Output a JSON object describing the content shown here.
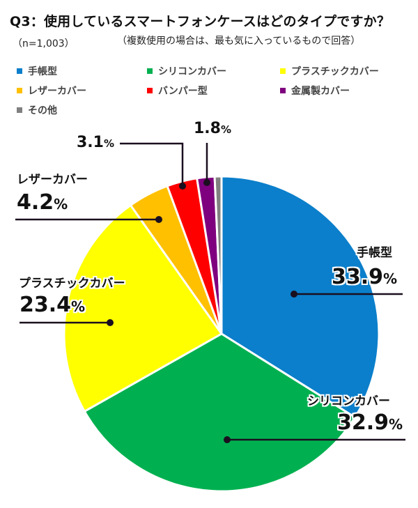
{
  "header": {
    "title": "Q3：使用しているスマートフォンケースはどのタイプですか？",
    "sample_size": "（n=1,003）",
    "note": "（複数使用の場合は、最も気に入っているもので回答）"
  },
  "legend": [
    {
      "label": "手帳型",
      "color": "#0b7fcb"
    },
    {
      "label": "シリコンカバー",
      "color": "#00b050"
    },
    {
      "label": "プラスチックカバー",
      "color": "#ffff00"
    },
    {
      "label": "レザーカバー",
      "color": "#ffc000"
    },
    {
      "label": "バンパー型",
      "color": "#ff0000"
    },
    {
      "label": "金属製カバー",
      "color": "#7f007f"
    },
    {
      "label": "その他",
      "color": "#808080"
    }
  ],
  "labels": {
    "techo": {
      "name": "手帳型",
      "value": "33.9",
      "pct": "%"
    },
    "silicon": {
      "name": "シリコンカバー",
      "value": "32.9",
      "pct": "%"
    },
    "plastic": {
      "name": "プラスチックカバー",
      "value": "23.4",
      "pct": "%"
    },
    "leather": {
      "name": "レザーカバー",
      "value": "4.2",
      "pct": "%"
    },
    "bumper": {
      "value": "3.1",
      "pct": "%"
    },
    "metal": {
      "value": "1.8",
      "pct": "%"
    }
  },
  "chart_data": {
    "type": "pie",
    "title": "Q3：使用しているスマートフォンケースはどのタイプですか？",
    "subtitle": "（複数使用の場合は、最も気に入っているもので回答）",
    "sample": "n=1,003",
    "unit": "%",
    "start_angle": "12 o'clock, clockwise",
    "legend_position": "top",
    "categories": [
      "手帳型",
      "シリコンカバー",
      "プラスチックカバー",
      "レザーカバー",
      "バンパー型",
      "金属製カバー",
      "その他"
    ],
    "values": [
      33.9,
      32.9,
      23.4,
      4.2,
      3.1,
      1.8,
      0.7
    ],
    "colors": [
      "#0b7fcb",
      "#00b050",
      "#ffff00",
      "#ffc000",
      "#ff0000",
      "#7f007f",
      "#808080"
    ],
    "data_labels": [
      "33.9%",
      "32.9%",
      "23.4%",
      "4.2%",
      "3.1%",
      "1.8%",
      ""
    ]
  }
}
